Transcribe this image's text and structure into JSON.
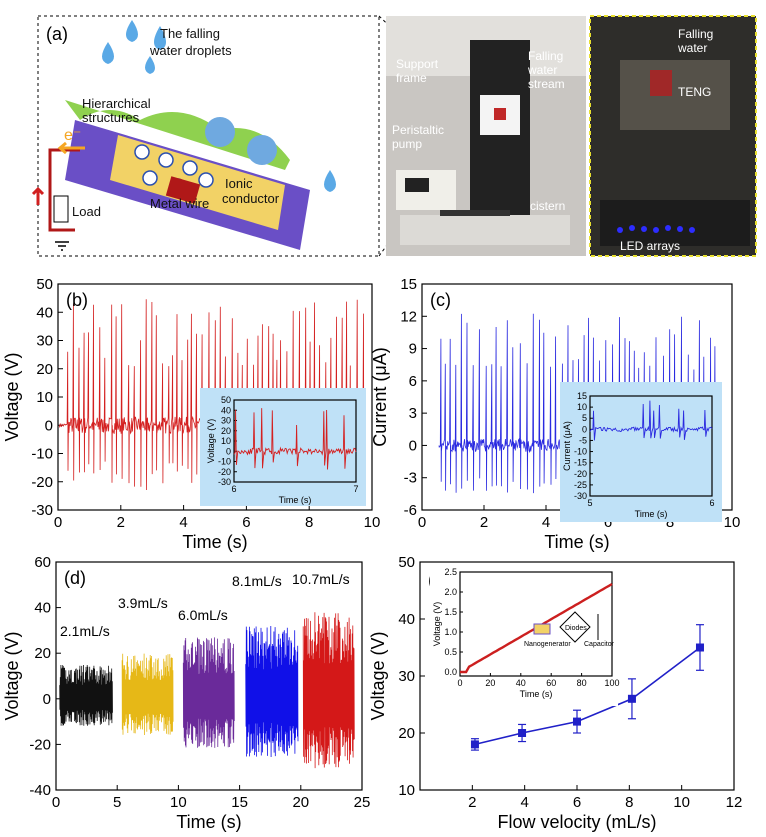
{
  "panel_a": {
    "label": "(a)",
    "texts": {
      "droplets": "The falling\nwater droplets",
      "hier": "Hierarchical\nstructures",
      "electron": "e⁻",
      "ionic": "Ionic\nconductor",
      "metal": "Metal wire",
      "load": "Load",
      "support": "Support\nframe",
      "falling_stream": "Falling\nwater\nstream",
      "pump": "Peristaltic\npump",
      "cistern": "cistern",
      "falling_water": "Falling\nwater",
      "teng": "TENG",
      "led": "LED arrays"
    },
    "colors": {
      "substrate": "#6a4fc6",
      "conductor": "#f2d266",
      "green": "#8fd14f",
      "wire": "#b01818",
      "electron": "#f5a623",
      "droplet": "#5aa9e6"
    }
  },
  "chart_data": [
    {
      "id": "b",
      "type": "line",
      "panel_label": "(b)",
      "xlabel": "Time (s)",
      "ylabel": "Voltage (V)",
      "xlim": [
        0,
        10
      ],
      "ylim": [
        -30,
        50
      ],
      "xticks": [
        "0",
        "2",
        "4",
        "6",
        "8",
        "10"
      ],
      "yticks": [
        "-30",
        "-20",
        "-10",
        "0",
        "10",
        "20",
        "30",
        "40",
        "50"
      ],
      "color": "#d42020",
      "signal": {
        "onset": 0.3,
        "dense_end": 4.6,
        "peak_interval": 0.16,
        "pos_peak_range": [
          20,
          45
        ],
        "neg_peak_range": [
          -12,
          -23
        ],
        "noise": 3
      },
      "inset": {
        "xlabel": "Time (s)",
        "ylabel": "Voltage (V)",
        "xlim": [
          6,
          7
        ],
        "ylim": [
          -30,
          50
        ],
        "xticks": [
          "6",
          "7"
        ],
        "yticks": [
          "-30",
          "-20",
          "-10",
          "0",
          "10",
          "20",
          "30",
          "40",
          "50"
        ],
        "bg": "#bfe1f7"
      }
    },
    {
      "id": "c",
      "type": "line",
      "panel_label": "(c)",
      "xlabel": "Time (s)",
      "ylabel": "Current (μA)",
      "xlim": [
        0,
        10
      ],
      "ylim": [
        -6,
        15
      ],
      "xticks": [
        "0",
        "2",
        "4",
        "6",
        "8",
        "10"
      ],
      "yticks": [
        "-6",
        "-3",
        "0",
        "3",
        "6",
        "9",
        "12",
        "15"
      ],
      "color": "#2a2ae0",
      "signal": {
        "onset": 0.6,
        "dense_end": 4.6,
        "peak_interval": 0.17,
        "pos_peak_range": [
          7,
          12.3
        ],
        "neg_peak_range": [
          -3,
          -4.5
        ],
        "noise": 0.6
      },
      "inset": {
        "xlabel": "Time (s)",
        "ylabel": "Current (μA)",
        "xlim": [
          5,
          6
        ],
        "ylim": [
          -30,
          15
        ],
        "xticks": [
          "5",
          "6"
        ],
        "yticks": [
          "-30",
          "-25",
          "-20",
          "-15",
          "-10",
          "-5",
          "0",
          "5",
          "10",
          "15"
        ],
        "bg": "#bfe1f7"
      }
    },
    {
      "id": "d",
      "type": "line",
      "panel_label": "(d)",
      "xlabel": "Time (s)",
      "ylabel": "Voltage (V)",
      "xlim": [
        0,
        25
      ],
      "ylim": [
        -40,
        60
      ],
      "xticks": [
        "0",
        "5",
        "10",
        "15",
        "20",
        "25"
      ],
      "yticks": [
        "-40",
        "-20",
        "0",
        "20",
        "40",
        "60"
      ],
      "segments": [
        {
          "label": "2.1mL/s",
          "x": [
            0.3,
            4.6
          ],
          "amp": 15,
          "color": "#111111"
        },
        {
          "label": "3.9mL/s",
          "x": [
            5.4,
            9.6
          ],
          "amp": 20,
          "color": "#e6b817"
        },
        {
          "label": "6.0mL/s",
          "x": [
            10.4,
            14.6
          ],
          "amp": 27,
          "color": "#6a2a9a"
        },
        {
          "label": "8.1mL/s",
          "x": [
            15.5,
            19.8
          ],
          "amp": 32,
          "color": "#1010e8"
        },
        {
          "label": "10.7mL/s",
          "x": [
            20.2,
            24.4
          ],
          "amp": 38,
          "color": "#d41818"
        }
      ]
    },
    {
      "id": "e",
      "type": "scatter",
      "panel_label": "(e)",
      "xlabel": "Flow velocity (mL/s)",
      "ylabel": "Voltage (V)",
      "xlim": [
        0,
        12
      ],
      "ylim": [
        10,
        50
      ],
      "xticks": [
        "2",
        "4",
        "6",
        "8",
        "10",
        "12"
      ],
      "yticks": [
        "10",
        "20",
        "30",
        "40",
        "50"
      ],
      "color": "#2020c8",
      "x": [
        2.1,
        3.9,
        6.0,
        8.1,
        10.7
      ],
      "y": [
        18,
        20,
        22,
        26,
        35
      ],
      "err": [
        1,
        1.5,
        2,
        3.5,
        4
      ],
      "inset": {
        "xlabel": "Time (s)",
        "ylabel": "Voltage (V)",
        "xlim": [
          0,
          100
        ],
        "ylim": [
          -0.1,
          2.5
        ],
        "xticks": [
          "0",
          "20",
          "40",
          "60",
          "80",
          "100"
        ],
        "yticks": [
          "0.0",
          "0.5",
          "1.0",
          "1.5",
          "2.0",
          "2.5"
        ],
        "color": "#cc1f1f",
        "line_end": 2.2,
        "circuit": {
          "nanogen": "Nanogenerator",
          "diodes": "Diodes",
          "capacitor": "Capacitor"
        }
      }
    }
  ]
}
